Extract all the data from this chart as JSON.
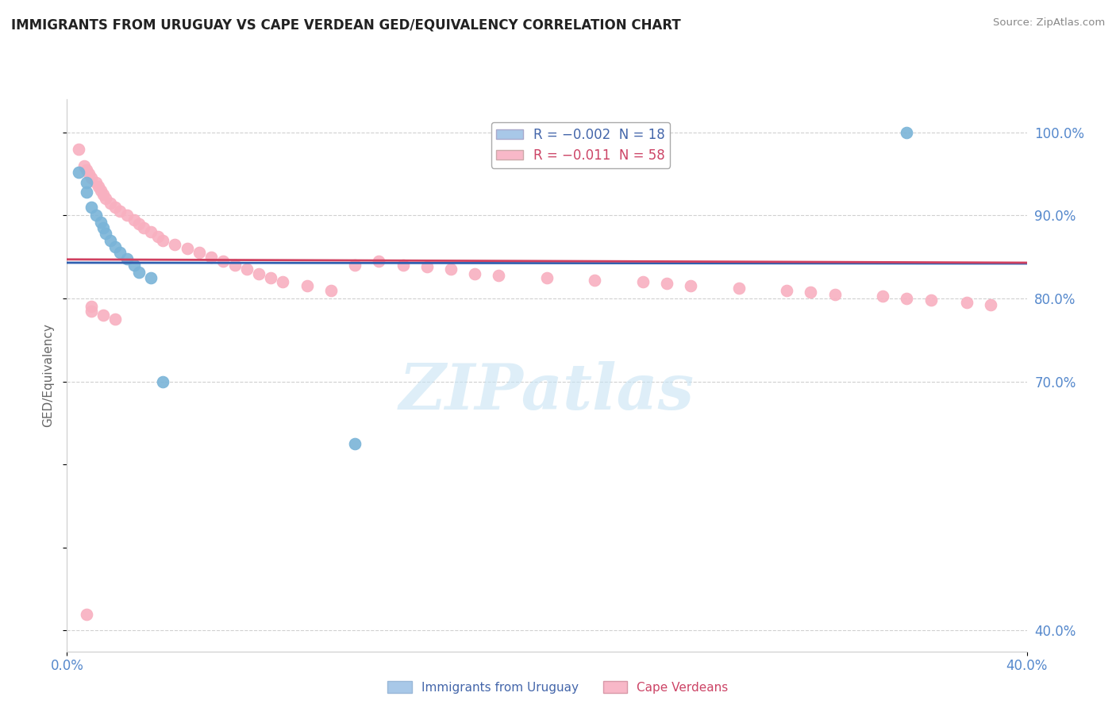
{
  "title": "IMMIGRANTS FROM URUGUAY VS CAPE VERDEAN GED/EQUIVALENCY CORRELATION CHART",
  "source": "Source: ZipAtlas.com",
  "ylabel": "GED/Equivalency",
  "ytick_labels": [
    "100.0%",
    "90.0%",
    "80.0%",
    "70.0%",
    "40.0%"
  ],
  "ytick_values": [
    1.0,
    0.9,
    0.8,
    0.7,
    0.4
  ],
  "xtick_labels": [
    "0.0%",
    "40.0%"
  ],
  "xtick_values": [
    0.0,
    0.4
  ],
  "xlim": [
    0.0,
    0.4
  ],
  "ylim": [
    0.375,
    1.04
  ],
  "legend": [
    {
      "label": "R = −0.002  N = 18",
      "color": "#a8c8e8"
    },
    {
      "label": "R = −0.011  N = 58",
      "color": "#f8b8c8"
    }
  ],
  "blue_scatter": {
    "x": [
      0.005,
      0.008,
      0.008,
      0.01,
      0.012,
      0.014,
      0.015,
      0.016,
      0.018,
      0.02,
      0.022,
      0.025,
      0.028,
      0.03,
      0.035,
      0.35,
      0.04,
      0.12
    ],
    "y": [
      0.952,
      0.94,
      0.928,
      0.91,
      0.9,
      0.892,
      0.885,
      0.878,
      0.87,
      0.862,
      0.855,
      0.848,
      0.84,
      0.832,
      0.825,
      1.0,
      0.7,
      0.625
    ],
    "color": "#7ab4d8",
    "edgecolor": "#7ab4d8",
    "size": 110
  },
  "pink_scatter": {
    "x": [
      0.005,
      0.007,
      0.008,
      0.009,
      0.01,
      0.012,
      0.013,
      0.014,
      0.015,
      0.016,
      0.018,
      0.02,
      0.022,
      0.025,
      0.028,
      0.03,
      0.032,
      0.035,
      0.038,
      0.04,
      0.045,
      0.05,
      0.055,
      0.06,
      0.065,
      0.07,
      0.075,
      0.08,
      0.085,
      0.09,
      0.1,
      0.11,
      0.12,
      0.13,
      0.14,
      0.15,
      0.16,
      0.17,
      0.18,
      0.2,
      0.22,
      0.24,
      0.25,
      0.26,
      0.28,
      0.3,
      0.31,
      0.32,
      0.34,
      0.35,
      0.36,
      0.375,
      0.385,
      0.01,
      0.01,
      0.015,
      0.02,
      0.008
    ],
    "y": [
      0.98,
      0.96,
      0.955,
      0.95,
      0.945,
      0.94,
      0.935,
      0.93,
      0.925,
      0.92,
      0.915,
      0.91,
      0.905,
      0.9,
      0.895,
      0.89,
      0.885,
      0.88,
      0.875,
      0.87,
      0.865,
      0.86,
      0.855,
      0.85,
      0.845,
      0.84,
      0.835,
      0.83,
      0.825,
      0.82,
      0.815,
      0.81,
      0.84,
      0.845,
      0.84,
      0.838,
      0.835,
      0.83,
      0.828,
      0.825,
      0.822,
      0.82,
      0.818,
      0.815,
      0.812,
      0.81,
      0.808,
      0.805,
      0.803,
      0.8,
      0.798,
      0.795,
      0.792,
      0.79,
      0.785,
      0.78,
      0.775,
      0.42
    ],
    "color": "#f8b0c0",
    "edgecolor": "#f8b0c0",
    "size": 110
  },
  "blue_line_y": [
    0.843,
    0.842
  ],
  "pink_line_y": [
    0.847,
    0.843
  ],
  "blue_line_color": "#3060b0",
  "pink_line_color": "#d04060",
  "line_width": 2.0,
  "grid_color": "#d0d0d0",
  "background_color": "#ffffff",
  "watermark": "ZIPatlas",
  "watermark_color": "#c8e4f4",
  "bottom_legend": [
    {
      "label": "Immigrants from Uruguay",
      "color": "#a8c8e8"
    },
    {
      "label": "Cape Verdeans",
      "color": "#f8b8c8"
    }
  ]
}
